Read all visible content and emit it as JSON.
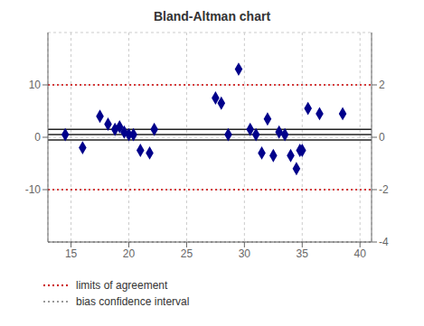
{
  "chart_data": {
    "type": "scatter",
    "title": "Bland-Altman chart",
    "xlim": [
      13,
      41
    ],
    "xticks": [
      15,
      20,
      25,
      30,
      35,
      40
    ],
    "ylim": [
      -20,
      20
    ],
    "yticks": [
      -10,
      0,
      10
    ],
    "y2lim": [
      -4,
      4
    ],
    "y2ticks": [
      -4,
      -2,
      0,
      2
    ],
    "grid": true,
    "series": [
      {
        "type": "scatter",
        "x": [
          14.5,
          16.0,
          17.5,
          18.2,
          18.8,
          19.2,
          19.6,
          20.0,
          20.4,
          21.0,
          21.8,
          22.2,
          27.5,
          28.0,
          28.6,
          29.5,
          30.5,
          31.0,
          31.5,
          32.0,
          32.5,
          33.0,
          33.5,
          34.0,
          34.5,
          34.8,
          35.0,
          35.5,
          36.5,
          38.5
        ],
        "values": [
          0.5,
          -2.0,
          4.0,
          2.5,
          1.5,
          2.0,
          1.0,
          0.5,
          0.5,
          -2.5,
          -3.0,
          1.5,
          7.5,
          6.5,
          0.5,
          13.0,
          1.5,
          0.5,
          -3.0,
          3.5,
          -3.5,
          1.0,
          0.5,
          -3.5,
          -6.0,
          -2.5,
          -2.5,
          5.5,
          4.5,
          4.5
        ],
        "color": "#00008B",
        "marker": "diamond"
      },
      {
        "type": "hline",
        "name": "limits of agreement",
        "values": [
          10.0,
          -10.0
        ],
        "color": "#cc0000",
        "line_style": "dotted"
      },
      {
        "type": "hline",
        "values": [
          0.5,
          1.5,
          -0.5
        ],
        "color": "#222222",
        "line_style": "solid"
      },
      {
        "type": "hline",
        "name": "bias confidence interval",
        "values": [
          -20.0
        ],
        "color": "#999999",
        "line_style": "dotted"
      }
    ]
  }
}
